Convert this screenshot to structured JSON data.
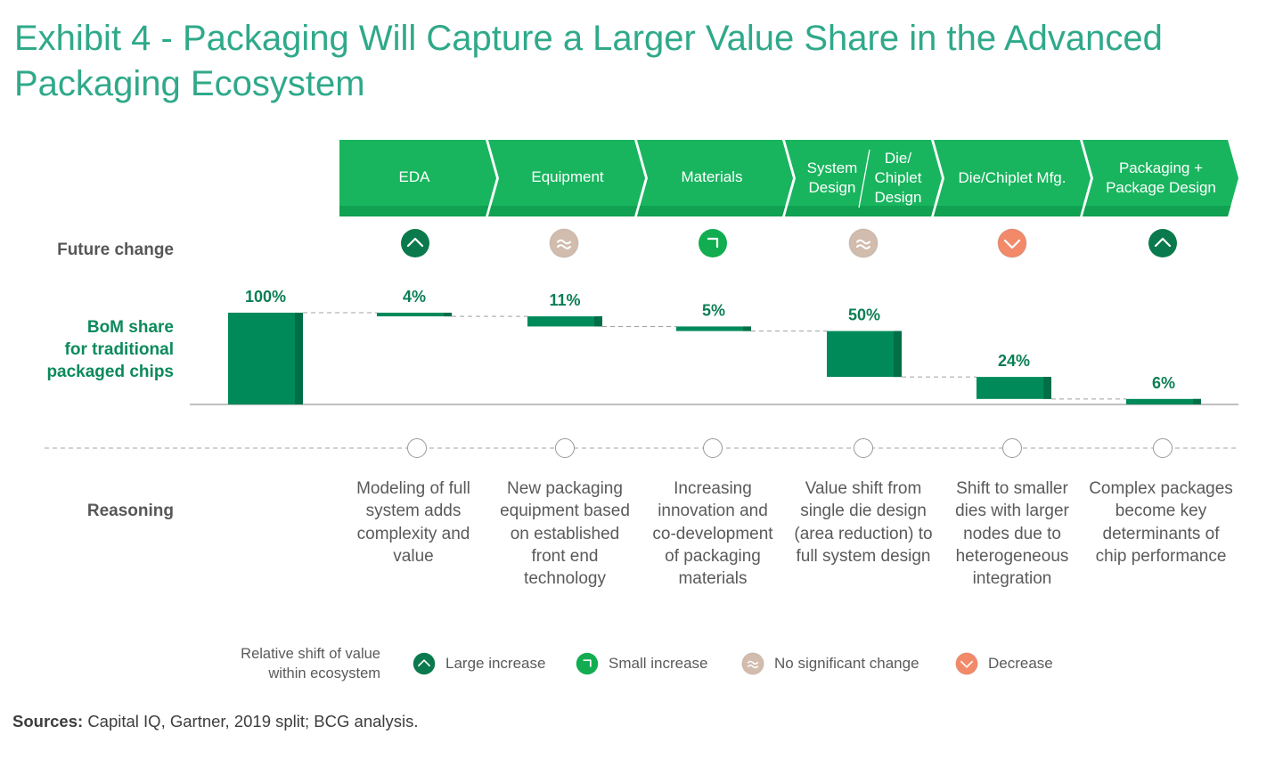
{
  "title": "Exhibit 4 - Packaging Will Capture a Larger Value Share in the Advanced Packaging Ecosystem",
  "row_labels": {
    "future_change": "Future change",
    "bom_share": [
      "BoM share",
      "for traditional",
      "packaged chips"
    ],
    "reasoning": "Reasoning"
  },
  "colors": {
    "title": "#2fa98a",
    "banner": "#18b55e",
    "banner_dark": "#10a152",
    "bar": "#008a5a",
    "bar_dark": "#006f47",
    "large_increase": "#0a7a4c",
    "small_increase": "#12ad50",
    "no_change": "#d2bcad",
    "decrease": "#f28a6a"
  },
  "chart_data": {
    "type": "bar",
    "subtype": "waterfall",
    "categories": [
      "",
      "EDA",
      "Equipment",
      "Materials",
      "System Design / Die/Chiplet Design",
      "Die/Chiplet Mfg.",
      "Packaging + Package Design"
    ],
    "values": [
      100,
      4,
      11,
      5,
      50,
      24,
      6
    ],
    "value_labels": [
      "100%",
      "4%",
      "11%",
      "5%",
      "50%",
      "24%",
      "6%"
    ],
    "ylabel": "BoM share for traditional packaged chips",
    "ylim": [
      0,
      100
    ]
  },
  "stages": [
    {
      "id": "eda",
      "label": "EDA",
      "change": "large_increase",
      "reason": "Modeling of full system adds complexity and value"
    },
    {
      "id": "equipment",
      "label": "Equipment",
      "change": "no_change",
      "reason": "New packaging equipment based on established front end technology"
    },
    {
      "id": "materials",
      "label": "Materials",
      "change": "small_increase",
      "reason": "Increasing innovation and co-development of packaging materials"
    },
    {
      "id": "design",
      "label_left": "System Design",
      "label_right": "Die/ Chiplet Design",
      "change": "no_change",
      "reason": "Value shift from single die design (area reduction) to full system design"
    },
    {
      "id": "mfg",
      "label": "Die/Chiplet Mfg.",
      "change": "decrease",
      "reason": "Shift to smaller dies with larger nodes due to heterogeneous integration"
    },
    {
      "id": "packaging",
      "label": "Packaging + Package Design",
      "change": "large_increase",
      "reason": "Complex packages become key determinants of chip performance"
    }
  ],
  "legend": {
    "title": "Relative shift of value within ecosystem",
    "items": [
      {
        "key": "large_increase",
        "label": "Large increase"
      },
      {
        "key": "small_increase",
        "label": "Small increase"
      },
      {
        "key": "no_change",
        "label": "No significant change"
      },
      {
        "key": "decrease",
        "label": "Decrease"
      }
    ]
  },
  "sources": {
    "label": "Sources:",
    "text": "Capital IQ, Gartner, 2019 split; BCG analysis."
  }
}
